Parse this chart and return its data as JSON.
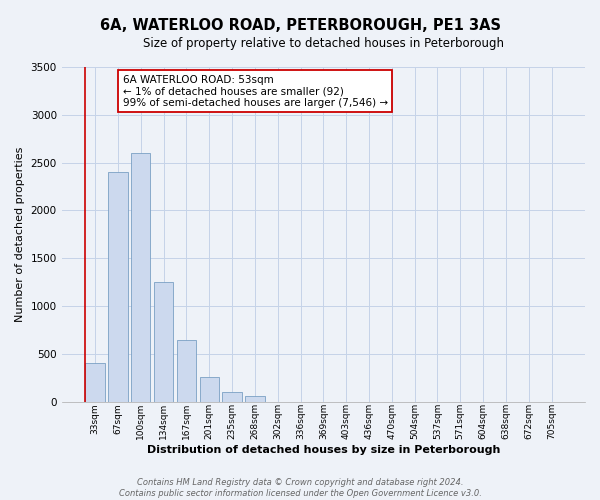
{
  "title": "6A, WATERLOO ROAD, PETERBOROUGH, PE1 3AS",
  "subtitle": "Size of property relative to detached houses in Peterborough",
  "xlabel": "Distribution of detached houses by size in Peterborough",
  "ylabel": "Number of detached properties",
  "bar_labels": [
    "33sqm",
    "67sqm",
    "100sqm",
    "134sqm",
    "167sqm",
    "201sqm",
    "235sqm",
    "268sqm",
    "302sqm",
    "336sqm",
    "369sqm",
    "403sqm",
    "436sqm",
    "470sqm",
    "504sqm",
    "537sqm",
    "571sqm",
    "604sqm",
    "638sqm",
    "672sqm",
    "705sqm"
  ],
  "bar_values": [
    400,
    2400,
    2600,
    1250,
    650,
    260,
    105,
    60,
    0,
    0,
    0,
    0,
    0,
    0,
    0,
    0,
    0,
    0,
    0,
    0,
    0
  ],
  "bar_color": "#ccd9ee",
  "bar_edge_color": "#7aa0c4",
  "vline_color": "#cc0000",
  "ylim": [
    0,
    3500
  ],
  "yticks": [
    0,
    500,
    1000,
    1500,
    2000,
    2500,
    3000,
    3500
  ],
  "annotation_title": "6A WATERLOO ROAD: 53sqm",
  "annotation_line1": "← 1% of detached houses are smaller (92)",
  "annotation_line2": "99% of semi-detached houses are larger (7,546) →",
  "annotation_box_color": "#ffffff",
  "annotation_box_edge": "#cc0000",
  "footer_line1": "Contains HM Land Registry data © Crown copyright and database right 2024.",
  "footer_line2": "Contains public sector information licensed under the Open Government Licence v3.0.",
  "bg_color": "#eef2f8",
  "grid_color": "#c5d3e8",
  "title_fontsize": 10.5,
  "subtitle_fontsize": 8.5,
  "xlabel_fontsize": 8,
  "ylabel_fontsize": 8,
  "annotation_fontsize": 7.5,
  "footer_fontsize": 6,
  "tick_fontsize": 6.5,
  "ytick_fontsize": 7.5
}
